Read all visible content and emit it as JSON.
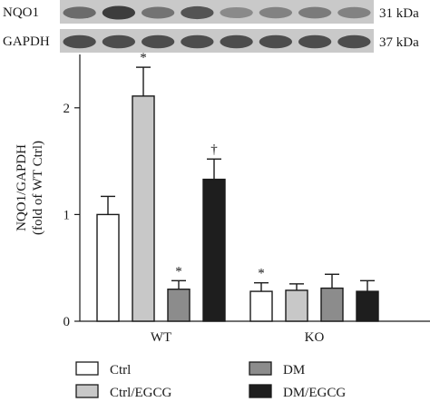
{
  "blots": {
    "rows": [
      {
        "protein": "NQO1",
        "size": "31 kDa",
        "band_intensity": [
          0.55,
          0.85,
          0.5,
          0.7,
          0.35,
          0.4,
          0.45,
          0.4
        ]
      },
      {
        "protein": "GAPDH",
        "size": "37 kDa",
        "band_intensity": [
          0.75,
          0.75,
          0.75,
          0.75,
          0.75,
          0.75,
          0.75,
          0.75
        ]
      }
    ]
  },
  "chart_data": {
    "type": "bar",
    "ylabel_line1": "NQO1/GAPDH",
    "ylabel_line2": "(fold of WT Ctrl)",
    "ylim": [
      0,
      2.5
    ],
    "yticks": [
      0,
      1,
      2
    ],
    "groups": [
      "WT",
      "KO"
    ],
    "series": [
      {
        "name": "Ctrl",
        "color": "#ffffff",
        "values": [
          1.0,
          0.28
        ],
        "errors": [
          0.17,
          0.08
        ],
        "marks": [
          "",
          "*"
        ]
      },
      {
        "name": "Ctrl/EGCG",
        "color": "#c8c8c8",
        "values": [
          2.11,
          0.29
        ],
        "errors": [
          0.27,
          0.06
        ],
        "marks": [
          "*",
          ""
        ]
      },
      {
        "name": "DM",
        "color": "#8c8c8c",
        "values": [
          0.3,
          0.31
        ],
        "errors": [
          0.08,
          0.13
        ],
        "marks": [
          "*",
          ""
        ]
      },
      {
        "name": "DM/EGCG",
        "color": "#1e1e1e",
        "values": [
          1.33,
          0.28
        ],
        "errors": [
          0.19,
          0.1
        ],
        "marks": [
          "†",
          ""
        ]
      }
    ]
  }
}
